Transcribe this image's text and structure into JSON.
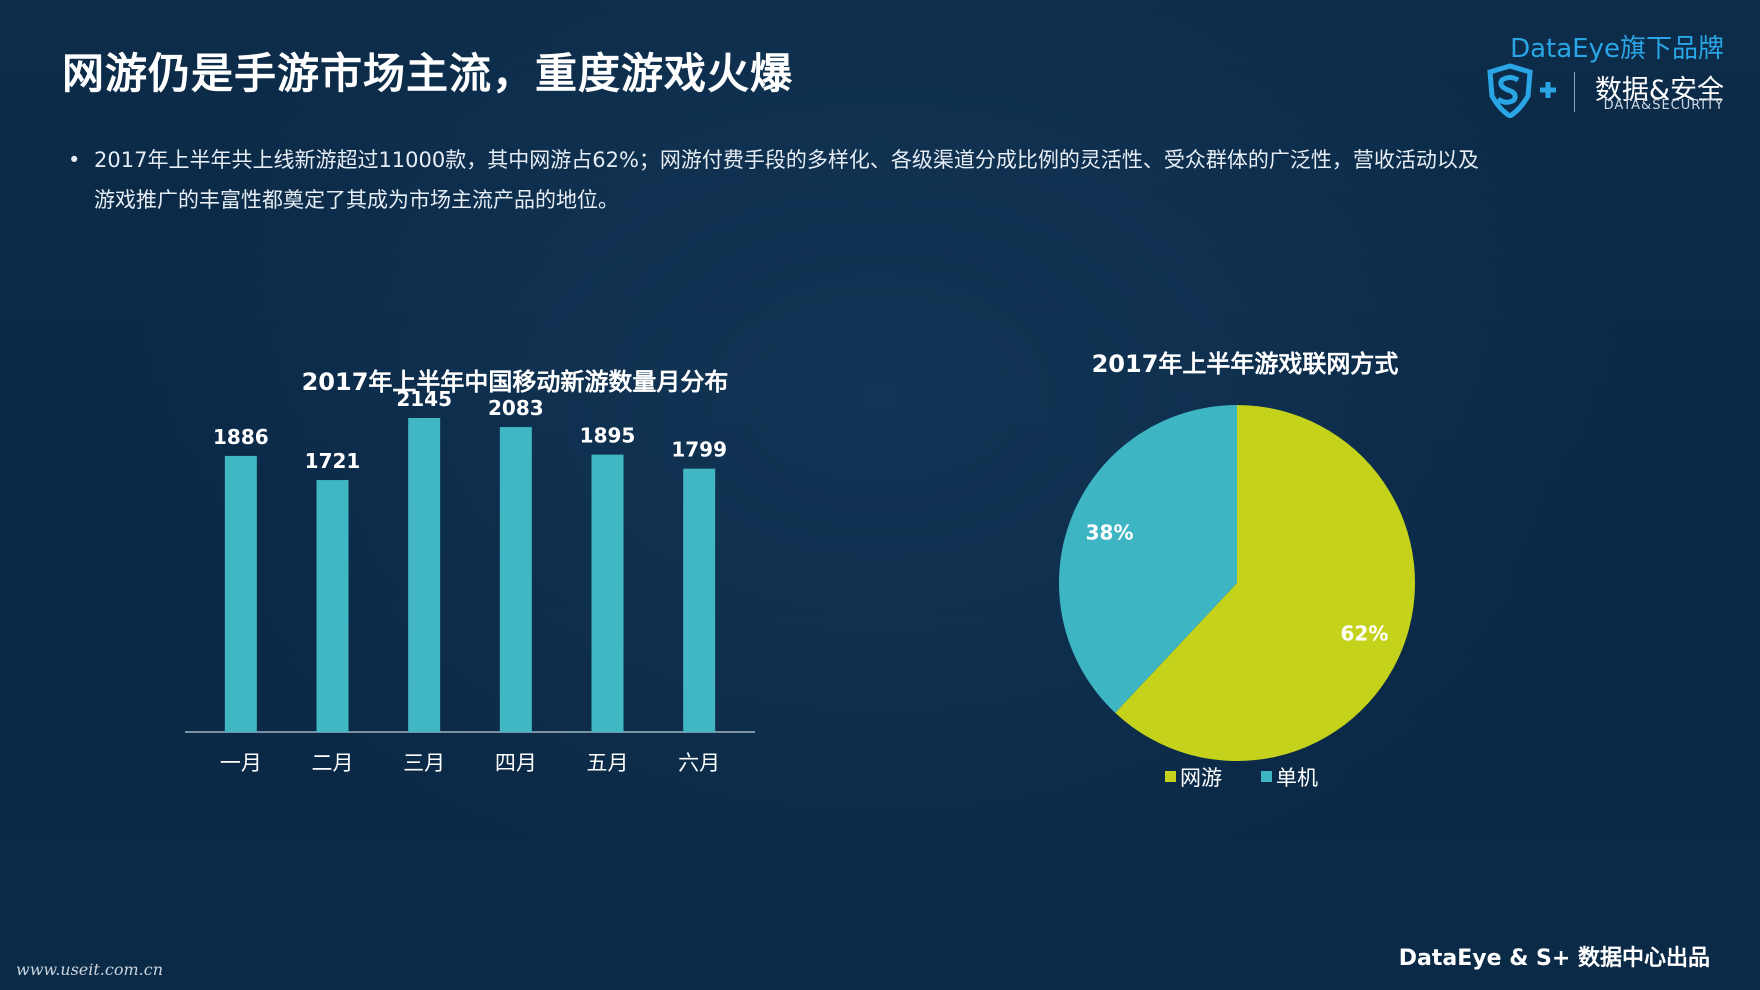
{
  "page": {
    "title": "网游仍是手游市场主流，重度游戏火爆",
    "bullet_text": "2017年上半年共上线新游超过11000款，其中网游占62%；网游付费手段的多样化、各级渠道分成比例的灵活性、受众群体的广泛性，营收活动以及游戏推广的丰富性都奠定了其成为市场主流产品的地位。",
    "footer": "DataEye & S+ 数据中心出品",
    "watermark": "www.useit.com.cn"
  },
  "brand": {
    "top_label": "DataEye旗下品牌",
    "name_cn": "数据&安全",
    "name_en": "DATA&SECURITY",
    "logo_icon": "shield-s-plus-icon",
    "accent_color": "#2aa6e6"
  },
  "chart_data": [
    {
      "type": "bar",
      "title": "2017年上半年中国移动新游数量月分布",
      "categories": [
        "一月",
        "二月",
        "三月",
        "四月",
        "五月",
        "六月"
      ],
      "values": [
        1886,
        1721,
        2145,
        2083,
        1895,
        1799
      ],
      "data_labels": [
        "1886",
        "1721",
        "2145",
        "2083",
        "1895",
        "1799"
      ],
      "xlabel": "",
      "ylabel": "",
      "ylim": [
        0,
        2145
      ],
      "grid": false,
      "bar_color": "#40b7c2"
    },
    {
      "type": "pie",
      "title": "2017年上半年游戏联网方式",
      "slices": [
        {
          "label": "网游",
          "value": 62,
          "value_label": "62%",
          "color": "#c4d21c"
        },
        {
          "label": "单机",
          "value": 38,
          "value_label": "38%",
          "color": "#3db5c3"
        }
      ],
      "legend_position": "bottom"
    }
  ]
}
